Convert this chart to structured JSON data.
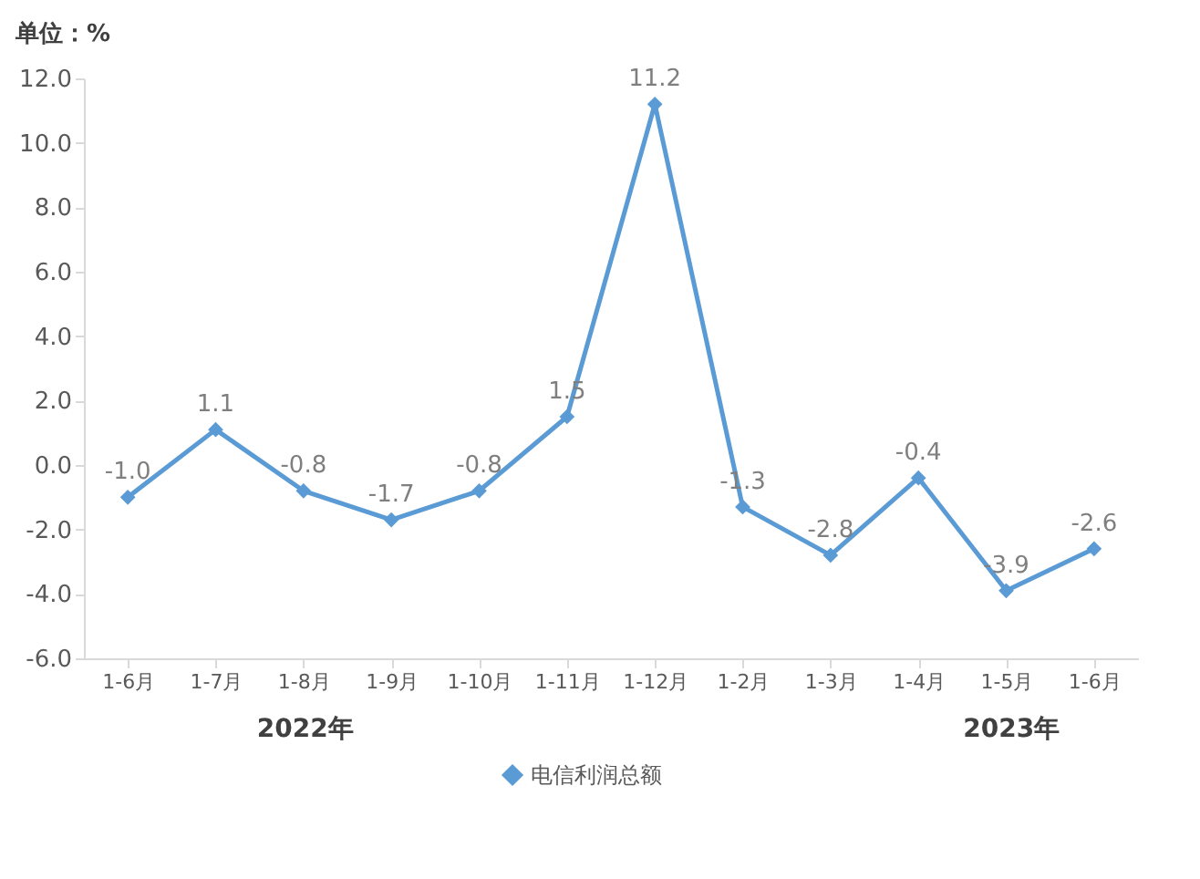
{
  "chart_data": {
    "type": "line",
    "ylabel": "单位：%",
    "categories": [
      "1-6月",
      "1-7月",
      "1-8月",
      "1-9月",
      "1-10月",
      "1-11月",
      "1-12月",
      "1-2月",
      "1-3月",
      "1-4月",
      "1-5月",
      "1-6月"
    ],
    "series": [
      {
        "name": "电信利润总额",
        "color": "#5b9bd5",
        "values": [
          -1.0,
          1.1,
          -0.8,
          -1.7,
          -0.8,
          1.5,
          11.2,
          -1.3,
          -2.8,
          -0.4,
          -3.9,
          -2.6
        ],
        "value_labels": [
          "-1.0",
          "1.1",
          "-0.8",
          "-1.7",
          "-0.8",
          "1.5",
          "11.2",
          "-1.3",
          "-2.8",
          "-0.4",
          "-3.9",
          "-2.6"
        ]
      }
    ],
    "ylim": [
      -6,
      12
    ],
    "yticks": [
      {
        "value": -6,
        "label": "-6.0"
      },
      {
        "value": -4,
        "label": "-4.0"
      },
      {
        "value": -2,
        "label": "-2.0"
      },
      {
        "value": 0,
        "label": "0.0"
      },
      {
        "value": 2,
        "label": "2.0"
      },
      {
        "value": 4,
        "label": "4.0"
      },
      {
        "value": 6,
        "label": "6.0"
      },
      {
        "value": 8,
        "label": "8.0"
      },
      {
        "value": 10,
        "label": "10.0"
      },
      {
        "value": 12,
        "label": "12.0"
      }
    ],
    "grid": false,
    "legend": "bottom",
    "marker": "diamond",
    "line_style": "solid",
    "annotations": [
      "2022年",
      "2023年"
    ]
  }
}
